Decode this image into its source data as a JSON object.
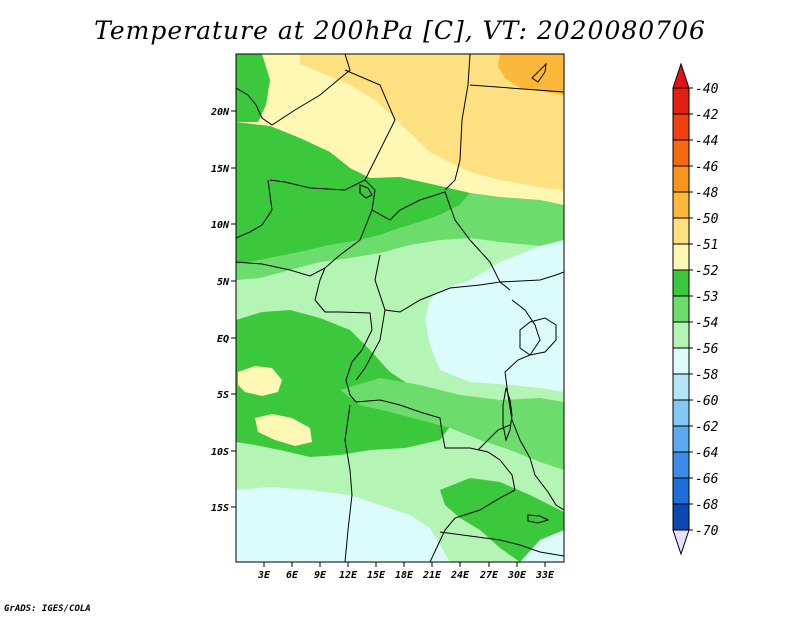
{
  "title": "Temperature at 200hPa [C], VT: 2020080706",
  "credit": "GrADS: IGES/COLA",
  "map": {
    "lat_labels": [
      "20N",
      "15N",
      "10N",
      "5N",
      "EQ",
      "5S",
      "10S",
      "15S"
    ],
    "lon_labels": [
      "3E",
      "6E",
      "9E",
      "12E",
      "15E",
      "18E",
      "21E",
      "24E",
      "27E",
      "30E",
      "33E"
    ]
  },
  "colorbar": {
    "levels": [
      "-40",
      "-42",
      "-44",
      "-46",
      "-48",
      "-50",
      "-51",
      "-52",
      "-53",
      "-54",
      "-56",
      "-58",
      "-60",
      "-62",
      "-64",
      "-66",
      "-68",
      "-70"
    ],
    "colors": [
      "#e02010",
      "#f04010",
      "#f56a10",
      "#f89418",
      "#fbb83a",
      "#fde080",
      "#fef8b4",
      "#3cc83c",
      "#6cdc6c",
      "#b4f4b4",
      "#dcfcfc",
      "#b4e6fa",
      "#82c8f5",
      "#5aaaf0",
      "#3c8ceb",
      "#1e6edc",
      "#0a46b4",
      "#0a2070"
    ],
    "top_color": "#e01414",
    "bottom_color": "#e8e0ff"
  }
}
